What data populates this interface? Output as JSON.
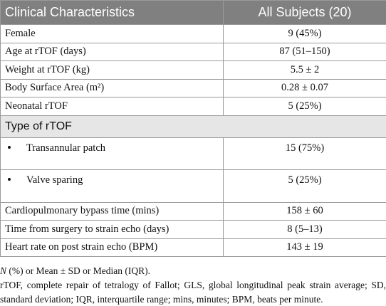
{
  "table": {
    "header": [
      "Clinical Characteristics",
      "All Subjects (20)"
    ],
    "rows": [
      [
        "Female",
        "9 (45%)"
      ],
      [
        "Age at rTOF (days)",
        "87 (51–150)"
      ],
      [
        "Weight at rTOF (kg)",
        "5.5 ± 2"
      ],
      [
        "Body Surface Area (m²)",
        "0.28 ± 0.07"
      ],
      [
        "Neonatal rTOF",
        "5 (25%)"
      ]
    ],
    "section": "Type of rTOF",
    "section_rows": [
      [
        "Transannular patch",
        "15 (75%)"
      ],
      [
        "Valve sparing",
        "5 (25%)"
      ]
    ],
    "rows_after": [
      [
        "Cardiopulmonary bypass time (mins)",
        "158 ± 60"
      ],
      [
        "Time from surgery to strain echo (days)",
        "8 (5–13)"
      ],
      [
        "Heart rate on post strain echo (BPM)",
        "143 ± 19"
      ]
    ]
  },
  "footnotes": {
    "n": "N",
    "legend": " (%) or Mean ± SD or Median (IQR).",
    "abbreviations": "rTOF, complete repair of tetralogy of Fallot; GLS, global longitudinal peak strain average; SD, standard deviation; IQR, interquartile range; mins, minutes; BPM, beats per minute."
  }
}
